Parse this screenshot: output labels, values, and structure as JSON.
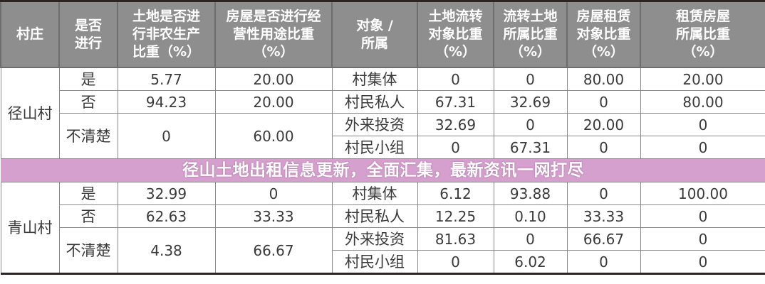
{
  "headers": [
    "村庄",
    "是否进行",
    "土地是否进行非农生产比重（%）",
    "房屋是否进行经营性用途比重（%）",
    "对象 / 所属",
    "土地流转对象比重（%）",
    "流转土地所属比重（%）",
    "房屋租赁对象比重（%）",
    "租赁房屋所属比重（%）"
  ],
  "villages": [
    {
      "name": "径山村",
      "groups": [
        {
          "status": "是",
          "land": "5.77",
          "house": "20.00"
        },
        {
          "status": "否",
          "land": "94.23",
          "house": "20.00"
        },
        {
          "status": "不清楚",
          "land": "0",
          "house": "60.00"
        }
      ],
      "objects": [
        {
          "label": "村集体",
          "values": [
            "0",
            "0",
            "80.00",
            "20.00"
          ]
        },
        {
          "label": "村民私人",
          "values": [
            "67.31",
            "32.69",
            "0",
            "80.00"
          ]
        },
        {
          "label": "外来投资",
          "values": [
            "32.69",
            "0",
            "20.00",
            "0"
          ]
        },
        {
          "label": "村民小组",
          "values": [
            "0",
            "67.31",
            "0",
            "0"
          ]
        }
      ]
    },
    {
      "name": "青山村",
      "groups": [
        {
          "status": "是",
          "land": "32.99",
          "house": "0"
        },
        {
          "status": "否",
          "land": "62.63",
          "house": "33.33"
        },
        {
          "status": "不清楚",
          "land": "4.38",
          "house": "66.67"
        }
      ],
      "objects": [
        {
          "label": "村集体",
          "values": [
            "6.12",
            "93.88",
            "0",
            "100.00"
          ]
        },
        {
          "label": "村民私人",
          "values": [
            "12.25",
            "0.10",
            "33.33",
            "0"
          ]
        },
        {
          "label": "外来投资",
          "values": [
            "81.63",
            "0",
            "66.67",
            "0"
          ]
        },
        {
          "label": "村民小组",
          "values": [
            "0",
            "6.02",
            "0",
            "0"
          ]
        }
      ]
    }
  ],
  "banner": {
    "text": "径山土地出租信息更新，全面汇集，最新资讯一网打尽",
    "color": "#d6a0ce"
  },
  "colors": {
    "header_bg": "#8e8e8e",
    "border": "#2b2424"
  }
}
